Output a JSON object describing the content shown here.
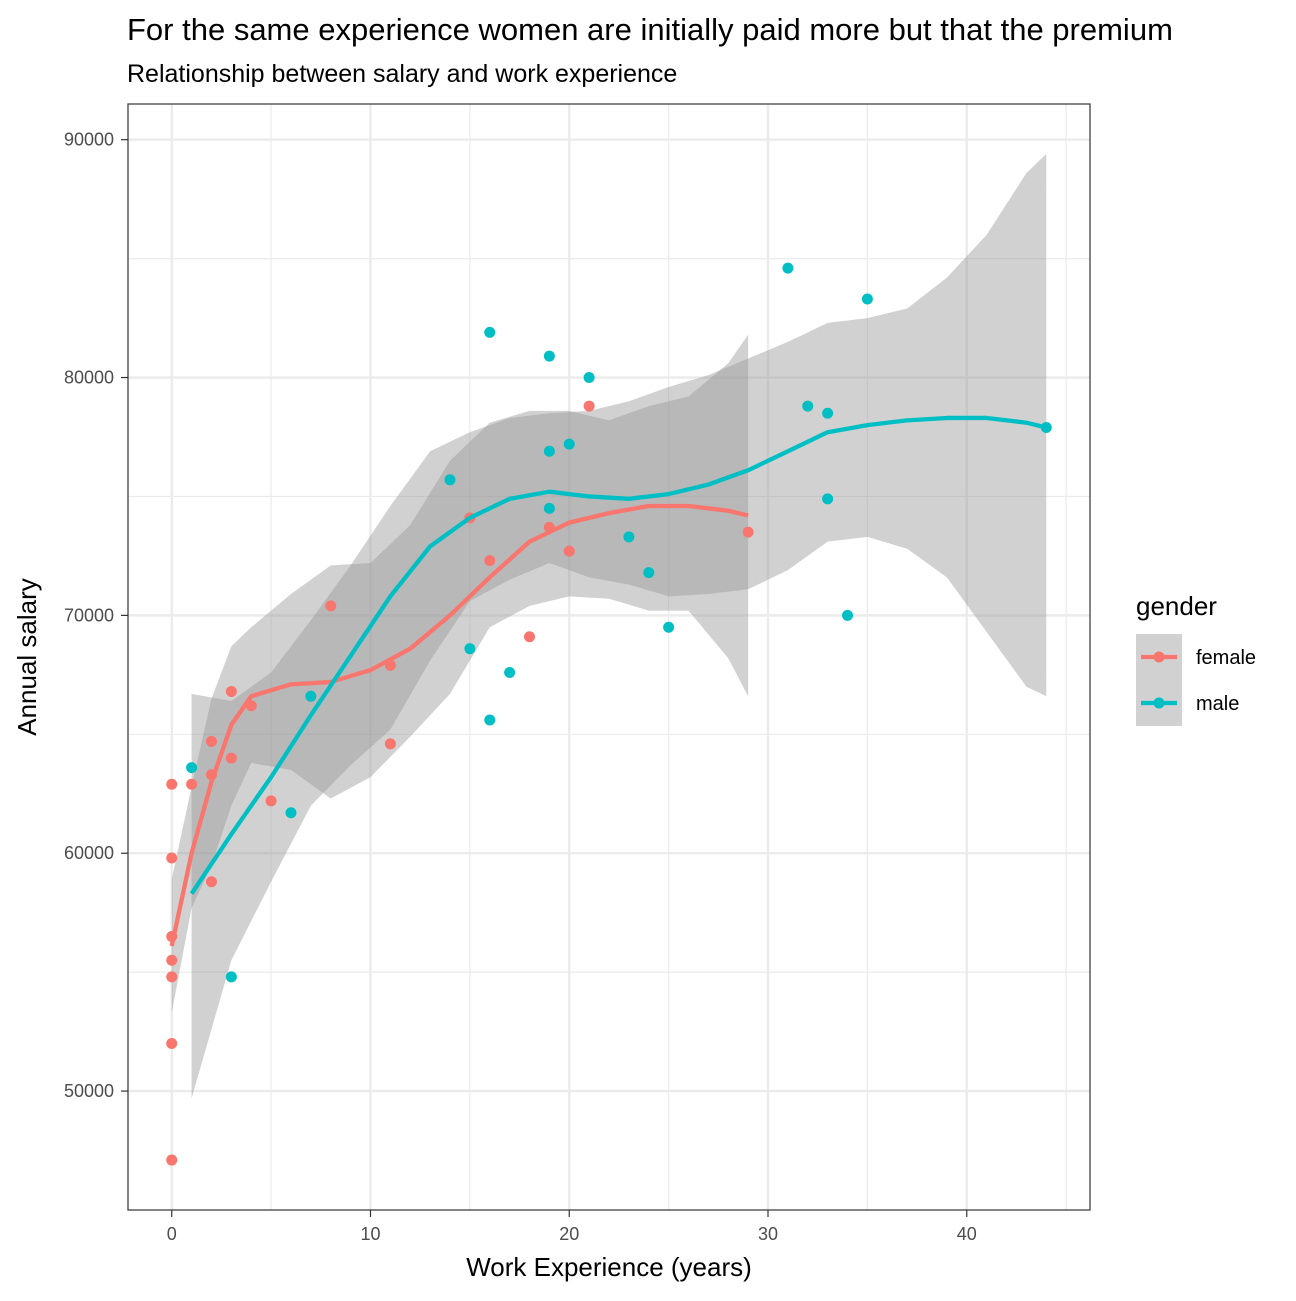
{
  "chart_data": {
    "type": "scatter",
    "title": "For the same experience women are initially paid more but that the premium",
    "subtitle": "Relationship between salary and work experience",
    "xlabel": "Work Experience (years)",
    "ylabel": "Annual salary",
    "xlim": [
      -2.2,
      46.2
    ],
    "ylim": [
      45000,
      91500
    ],
    "x_ticks": [
      0,
      10,
      20,
      30,
      40
    ],
    "y_ticks": [
      50000,
      60000,
      70000,
      80000,
      90000
    ],
    "x_tick_labels": [
      "0",
      "10",
      "20",
      "30",
      "40"
    ],
    "y_tick_labels": [
      "50000",
      "60000",
      "70000",
      "80000",
      "90000"
    ],
    "grid": true,
    "legend": {
      "title": "gender",
      "placement": "right",
      "entries": [
        "female",
        "male"
      ]
    },
    "colors": {
      "female": "#F8766D",
      "male": "#00BFC4",
      "ribbon": "#999999",
      "grid": "#ebebeb",
      "panel_border": "#333333"
    },
    "series": [
      {
        "name": "female",
        "color": "#F8766D",
        "points": [
          [
            0,
            47100
          ],
          [
            0,
            52000
          ],
          [
            0,
            54800
          ],
          [
            0,
            55500
          ],
          [
            0,
            56500
          ],
          [
            0,
            59800
          ],
          [
            0,
            62900
          ],
          [
            1,
            62900
          ],
          [
            2,
            64700
          ],
          [
            2,
            63300
          ],
          [
            2,
            58800
          ],
          [
            3,
            66800
          ],
          [
            3,
            64000
          ],
          [
            4,
            66200
          ],
          [
            5,
            62200
          ],
          [
            8,
            70400
          ],
          [
            11,
            67900
          ],
          [
            11,
            64600
          ],
          [
            15,
            74100
          ],
          [
            16,
            72300
          ],
          [
            18,
            69100
          ],
          [
            19,
            73700
          ],
          [
            20,
            72700
          ],
          [
            21,
            78800
          ],
          [
            29,
            73500
          ]
        ],
        "smooth": [
          [
            0,
            56100
          ],
          [
            1,
            60000
          ],
          [
            2,
            63000
          ],
          [
            3,
            65400
          ],
          [
            4,
            66600
          ],
          [
            6,
            67100
          ],
          [
            8,
            67200
          ],
          [
            10,
            67700
          ],
          [
            12,
            68600
          ],
          [
            14,
            70000
          ],
          [
            16,
            71600
          ],
          [
            18,
            73100
          ],
          [
            20,
            73900
          ],
          [
            22,
            74300
          ],
          [
            24,
            74600
          ],
          [
            26,
            74600
          ],
          [
            28,
            74400
          ],
          [
            29,
            74200
          ]
        ],
        "ribbon": [
          [
            0,
            53300,
            58900
          ],
          [
            1,
            57700,
            62800
          ],
          [
            2,
            59500,
            66500
          ],
          [
            3,
            62000,
            68700
          ],
          [
            4,
            63800,
            69500
          ],
          [
            6,
            63500,
            70900
          ],
          [
            8,
            62300,
            72100
          ],
          [
            10,
            63200,
            72200
          ],
          [
            12,
            64900,
            73800
          ],
          [
            14,
            66700,
            76500
          ],
          [
            16,
            69500,
            78100
          ],
          [
            18,
            70400,
            78600
          ],
          [
            20,
            70800,
            78600
          ],
          [
            22,
            70700,
            78200
          ],
          [
            24,
            70200,
            78800
          ],
          [
            26,
            70200,
            79200
          ],
          [
            28,
            68200,
            80600
          ],
          [
            29,
            66600,
            81800
          ]
        ]
      },
      {
        "name": "male",
        "color": "#00BFC4",
        "points": [
          [
            1,
            63600
          ],
          [
            3,
            54800
          ],
          [
            6,
            61700
          ],
          [
            7,
            66600
          ],
          [
            14,
            75700
          ],
          [
            15,
            68600
          ],
          [
            16,
            81900
          ],
          [
            16,
            65600
          ],
          [
            17,
            67600
          ],
          [
            19,
            80900
          ],
          [
            19,
            76900
          ],
          [
            19,
            74500
          ],
          [
            20,
            77200
          ],
          [
            21,
            80000
          ],
          [
            23,
            73300
          ],
          [
            24,
            71800
          ],
          [
            25,
            69500
          ],
          [
            31,
            84600
          ],
          [
            32,
            78800
          ],
          [
            33,
            78500
          ],
          [
            33,
            74900
          ],
          [
            34,
            70000
          ],
          [
            35,
            83300
          ],
          [
            44,
            77900
          ]
        ],
        "smooth": [
          [
            1,
            58300
          ],
          [
            3,
            60800
          ],
          [
            5,
            63200
          ],
          [
            7,
            65800
          ],
          [
            9,
            68300
          ],
          [
            11,
            70800
          ],
          [
            13,
            72900
          ],
          [
            15,
            74100
          ],
          [
            17,
            74900
          ],
          [
            19,
            75200
          ],
          [
            21,
            75000
          ],
          [
            23,
            74900
          ],
          [
            25,
            75100
          ],
          [
            27,
            75500
          ],
          [
            29,
            76100
          ],
          [
            31,
            76900
          ],
          [
            33,
            77700
          ],
          [
            35,
            78000
          ],
          [
            37,
            78200
          ],
          [
            39,
            78300
          ],
          [
            41,
            78300
          ],
          [
            43,
            78100
          ],
          [
            44,
            77900
          ]
        ],
        "ribbon": [
          [
            1,
            49700,
            66700
          ],
          [
            3,
            55500,
            66400
          ],
          [
            5,
            58800,
            67600
          ],
          [
            7,
            62000,
            69800
          ],
          [
            9,
            63700,
            72100
          ],
          [
            11,
            65200,
            74600
          ],
          [
            13,
            68100,
            76900
          ],
          [
            15,
            70600,
            77700
          ],
          [
            17,
            71500,
            78300
          ],
          [
            19,
            72200,
            78500
          ],
          [
            21,
            71600,
            78600
          ],
          [
            23,
            71300,
            79000
          ],
          [
            25,
            70800,
            79600
          ],
          [
            27,
            70900,
            80100
          ],
          [
            29,
            71100,
            80800
          ],
          [
            31,
            71900,
            81500
          ],
          [
            33,
            73100,
            82300
          ],
          [
            35,
            73300,
            82500
          ],
          [
            37,
            72800,
            82900
          ],
          [
            39,
            71600,
            84200
          ],
          [
            41,
            69300,
            86000
          ],
          [
            43,
            67000,
            88600
          ],
          [
            44,
            66600,
            89400
          ]
        ]
      }
    ]
  }
}
